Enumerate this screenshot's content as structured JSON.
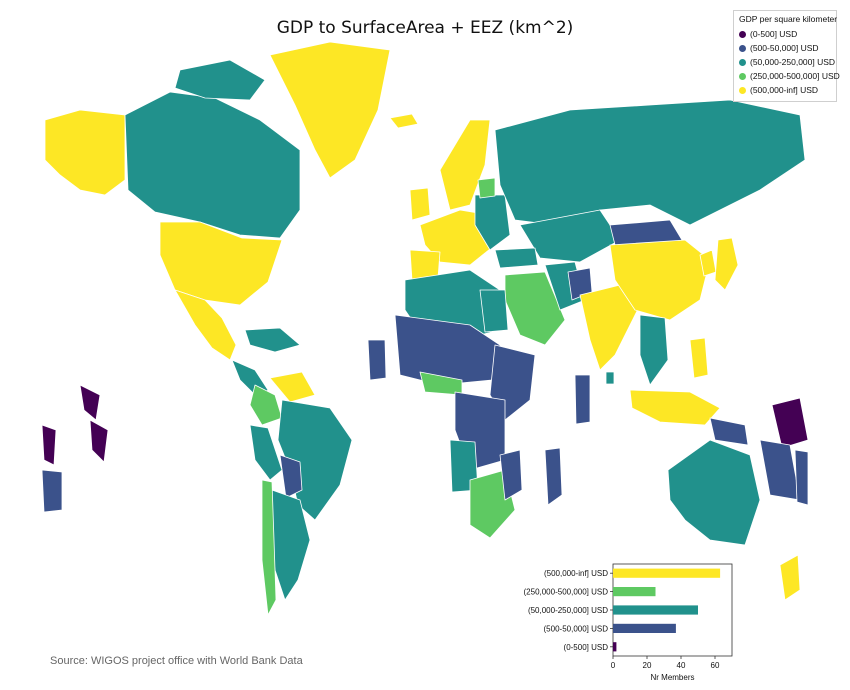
{
  "title": "GDP to SurfaceArea + EEZ (km^2)",
  "source": "Source: WIGOS project office with World Bank Data",
  "legend": {
    "title": "GDP per square kilometer",
    "items": [
      {
        "label": "(0-500] USD",
        "color": "#440154"
      },
      {
        "label": "(500-50,000] USD",
        "color": "#3b528b"
      },
      {
        "label": "(50,000-250,000] USD",
        "color": "#21918c"
      },
      {
        "label": "(250,000-500,000] USD",
        "color": "#5ec962"
      },
      {
        "label": "(500,000-inf] USD",
        "color": "#fde725"
      }
    ]
  },
  "chart_data": {
    "type": "bar",
    "orientation": "horizontal",
    "categories": [
      "(500,000-inf] USD",
      "(250,000-500,000] USD",
      "(50,000-250,000] USD",
      "(500-50,000] USD",
      "(0-500] USD"
    ],
    "values": [
      63,
      25,
      50,
      37,
      2
    ],
    "colors": [
      "#fde725",
      "#5ec962",
      "#21918c",
      "#3b528b",
      "#440154"
    ],
    "xlabel": "Nr Members",
    "xlim": [
      0,
      70
    ],
    "xticks": [
      0,
      20,
      40,
      60
    ]
  }
}
